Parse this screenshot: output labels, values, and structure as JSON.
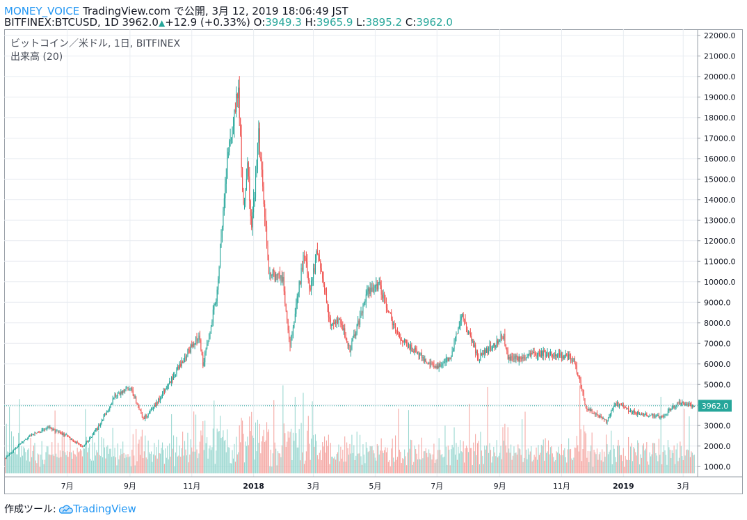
{
  "header": {
    "brand": "MONEY_VOICE",
    "published": "TradingView.com で公開, 3月 12, 2019 18:06:49 JST",
    "symbol": "BITFINEX:BTCUSD, 1D",
    "last": "3962.0",
    "change_arrow": "▲",
    "change": "+12.9 (+0.33%)",
    "o_label": "O:",
    "o": "3949.3",
    "h_label": "H:",
    "h": "3965.9",
    "l_label": "L:",
    "l": "3895.2",
    "c_label": "C:",
    "c": "3962.0"
  },
  "legend": {
    "title": "ビットコイン／米ドル, 1日, BITFINEX",
    "volume": "出来高 (20)"
  },
  "footer": {
    "label": "作成ツール:",
    "logo_text": "TradingView"
  },
  "colors": {
    "up": "#26a69a",
    "down": "#ef5350",
    "vol_up": "#9ad7d0",
    "vol_down": "#f5a8a4",
    "grid": "#e8ecf1",
    "last_line": "#26a69a",
    "link": "#2196f3"
  },
  "chart_data": {
    "type": "candlestick",
    "ylim": [
      500,
      22300
    ],
    "y_ticks": [
      "22000.0",
      "21000.0",
      "20000.0",
      "19000.0",
      "18000.0",
      "17000.0",
      "16000.0",
      "15000.0",
      "14000.0",
      "13000.0",
      "12000.0",
      "11000.0",
      "10000.0",
      "9000.0",
      "8000.0",
      "7000.0",
      "6000.0",
      "5000.0",
      "4000.0",
      "3000.0",
      "2000.0",
      "1000.0"
    ],
    "x_ticks": [
      {
        "label": "7月",
        "date": "2017-07-01"
      },
      {
        "label": "9月",
        "date": "2017-09-01"
      },
      {
        "label": "11月",
        "date": "2017-11-01"
      },
      {
        "label": "2018",
        "date": "2018-01-01",
        "bold": true
      },
      {
        "label": "3月",
        "date": "2018-03-01"
      },
      {
        "label": "5月",
        "date": "2018-05-01"
      },
      {
        "label": "7月",
        "date": "2018-07-01"
      },
      {
        "label": "9月",
        "date": "2018-09-01"
      },
      {
        "label": "11月",
        "date": "2018-11-01"
      },
      {
        "label": "2019",
        "date": "2019-01-01",
        "bold": true
      },
      {
        "label": "3月",
        "date": "2019-03-01"
      }
    ],
    "date_range": [
      "2017-05-01",
      "2019-03-12"
    ],
    "last_price": "3962.0",
    "price_path": [
      [
        "2017-05-01",
        1420
      ],
      [
        "2017-05-25",
        2500
      ],
      [
        "2017-06-12",
        2900
      ],
      [
        "2017-06-30",
        2500
      ],
      [
        "2017-07-16",
        1950
      ],
      [
        "2017-07-31",
        2850
      ],
      [
        "2017-08-17",
        4400
      ],
      [
        "2017-09-01",
        4900
      ],
      [
        "2017-09-14",
        3300
      ],
      [
        "2017-09-30",
        4300
      ],
      [
        "2017-10-21",
        6000
      ],
      [
        "2017-11-08",
        7400
      ],
      [
        "2017-11-12",
        5900
      ],
      [
        "2017-11-26",
        9500
      ],
      [
        "2017-12-07",
        16500
      ],
      [
        "2017-12-17",
        19500
      ],
      [
        "2017-12-22",
        13500
      ],
      [
        "2017-12-26",
        15800
      ],
      [
        "2017-12-30",
        12500
      ],
      [
        "2018-01-06",
        17100
      ],
      [
        "2018-01-16",
        10500
      ],
      [
        "2018-01-30",
        10000
      ],
      [
        "2018-02-06",
        6900
      ],
      [
        "2018-02-20",
        11400
      ],
      [
        "2018-02-26",
        9600
      ],
      [
        "2018-03-05",
        11500
      ],
      [
        "2018-03-18",
        7800
      ],
      [
        "2018-03-27",
        8200
      ],
      [
        "2018-04-06",
        6700
      ],
      [
        "2018-04-24",
        9500
      ],
      [
        "2018-05-05",
        9800
      ],
      [
        "2018-05-23",
        7400
      ],
      [
        "2018-06-12",
        6500
      ],
      [
        "2018-06-29",
        5800
      ],
      [
        "2018-07-15",
        6400
      ],
      [
        "2018-07-25",
        8400
      ],
      [
        "2018-08-11",
        6300
      ],
      [
        "2018-08-28",
        7000
      ],
      [
        "2018-09-05",
        7400
      ],
      [
        "2018-09-09",
        6200
      ],
      [
        "2018-10-14",
        6500
      ],
      [
        "2018-11-13",
        6300
      ],
      [
        "2018-11-25",
        3900
      ],
      [
        "2018-12-15",
        3200
      ],
      [
        "2018-12-24",
        4100
      ],
      [
        "2019-01-10",
        3650
      ],
      [
        "2019-02-07",
        3400
      ],
      [
        "2019-02-24",
        4100
      ],
      [
        "2019-03-12",
        3962
      ]
    ]
  }
}
